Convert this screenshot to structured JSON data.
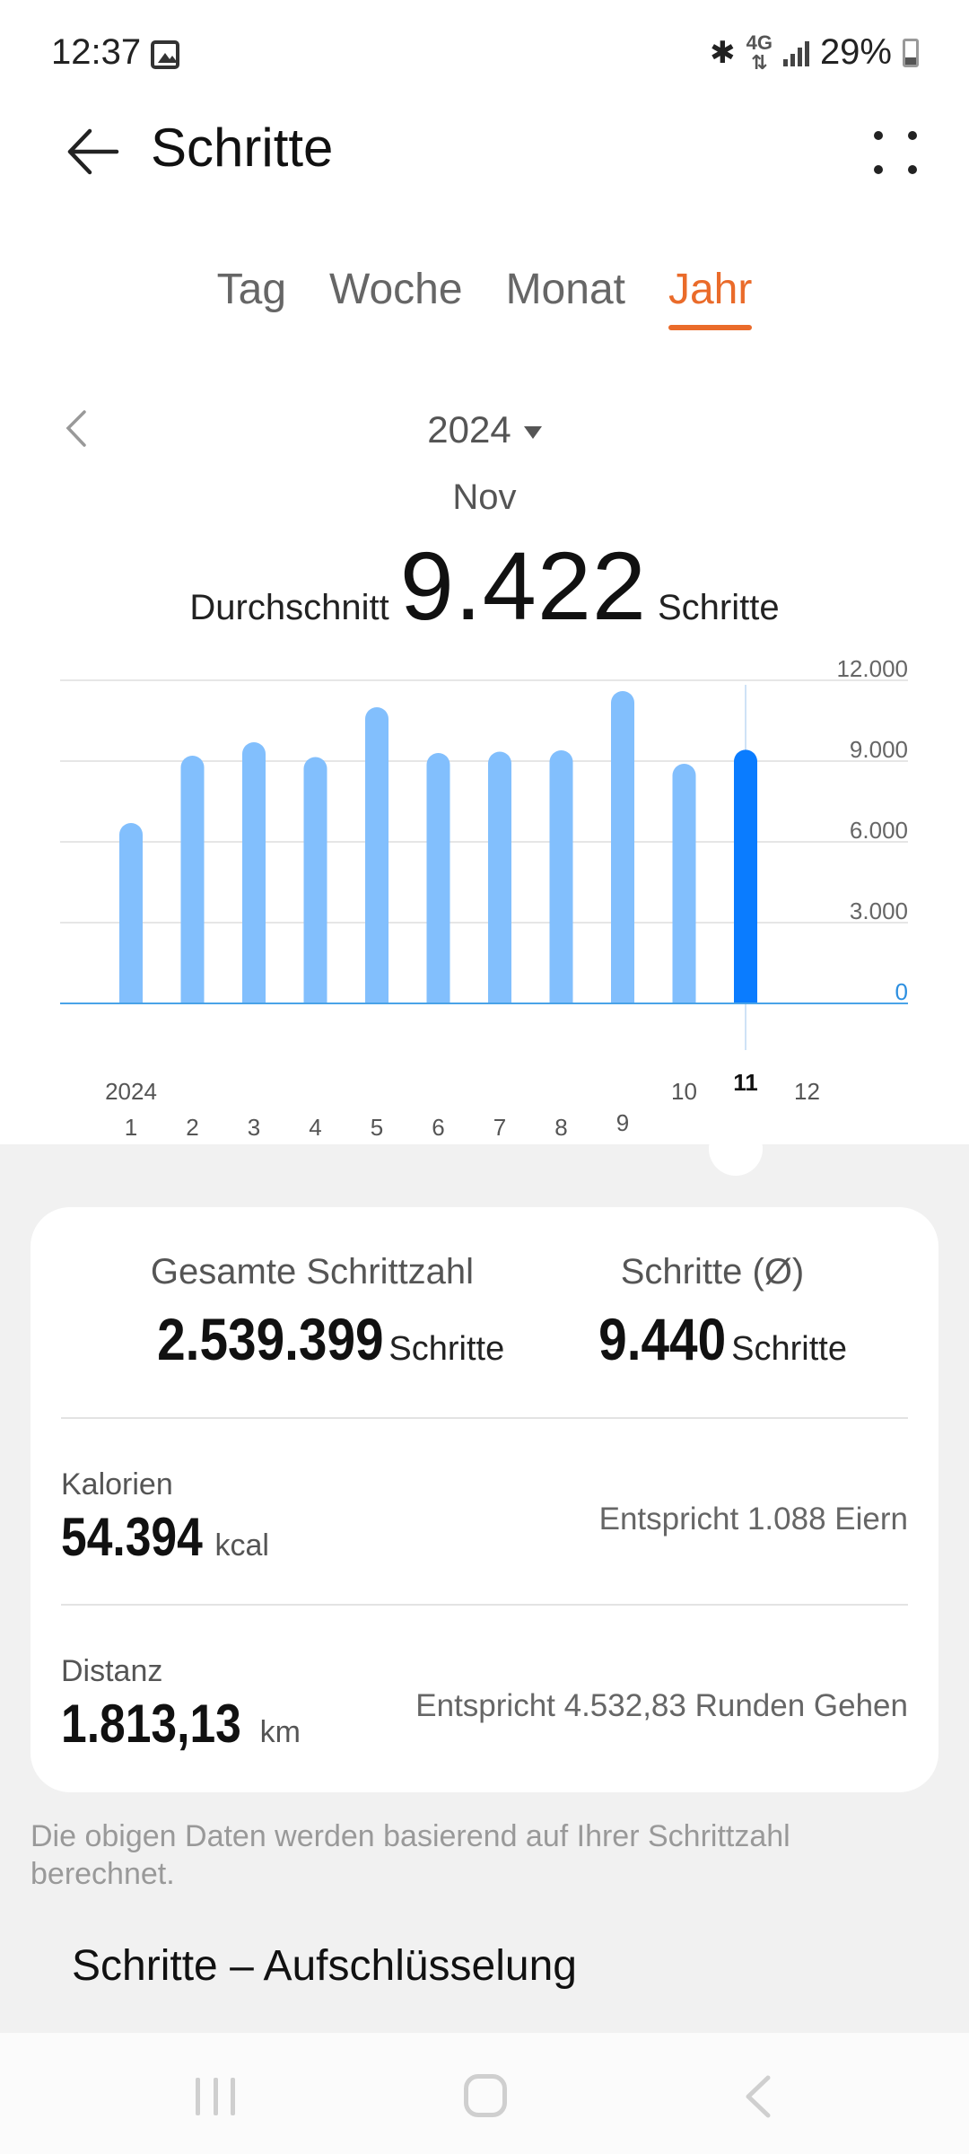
{
  "status_bar": {
    "time": "12:37",
    "network": "4G",
    "battery": "29%",
    "icons": [
      "image-icon",
      "bluetooth-icon",
      "4g-data-icon",
      "signal-icon",
      "battery-icon"
    ]
  },
  "app_bar": {
    "title": "Schritte",
    "icons": [
      "back-arrow-icon",
      "more-options-icon"
    ]
  },
  "tabs": [
    {
      "label": "Tag",
      "active": false
    },
    {
      "label": "Woche",
      "active": false
    },
    {
      "label": "Monat",
      "active": false
    },
    {
      "label": "Jahr",
      "active": true
    }
  ],
  "period": {
    "year": "2024",
    "selected_month": "Nov",
    "average_label": "Durchschnitt",
    "average_value": "9.422",
    "average_unit": "Schritte"
  },
  "chart_data": {
    "type": "bar",
    "categories": [
      "1",
      "2",
      "3",
      "4",
      "5",
      "6",
      "7",
      "8",
      "9",
      "10",
      "11",
      "12"
    ],
    "first_category_year_label": "2024",
    "values": [
      6700,
      9200,
      9700,
      9150,
      11000,
      9300,
      9350,
      9400,
      11600,
      8900,
      9422,
      0
    ],
    "selected_index": 10,
    "ylim": [
      0,
      12000
    ],
    "y_ticks": [
      {
        "value": 0,
        "label": "0"
      },
      {
        "value": 3000,
        "label": "3.000"
      },
      {
        "value": 6000,
        "label": "6.000"
      },
      {
        "value": 9000,
        "label": "9.000"
      },
      {
        "value": 12000,
        "label": "12.000"
      }
    ],
    "grid": true,
    "colors": {
      "bar": "#82bffd",
      "selected_bar": "#0a7cff",
      "grid": "#e6e6e6",
      "baseline": "#4aa3e8",
      "zero_label": "#2d8fe0"
    }
  },
  "summary": {
    "total_label": "Gesamte Schrittzahl",
    "total_value": "2.539.399",
    "total_unit": "Schritte",
    "avg_label": "Schritte (Ø)",
    "avg_value": "9.440",
    "avg_unit": "Schritte"
  },
  "calories": {
    "label": "Kalorien",
    "value": "54.394",
    "unit": "kcal",
    "equivalent": "Entspricht 1.088 Eiern"
  },
  "distance": {
    "label": "Distanz",
    "value": "1.813,13",
    "unit": "km",
    "equivalent": "Entspricht 4.532,83 Runden Gehen"
  },
  "note": "Die obigen Daten werden basierend auf Ihrer Schrittzahl berechnet.",
  "section_title": "Schritte – Aufschlüsselung",
  "colors": {
    "accent": "#ea6b2a",
    "background_grey": "#f1f1f1"
  }
}
